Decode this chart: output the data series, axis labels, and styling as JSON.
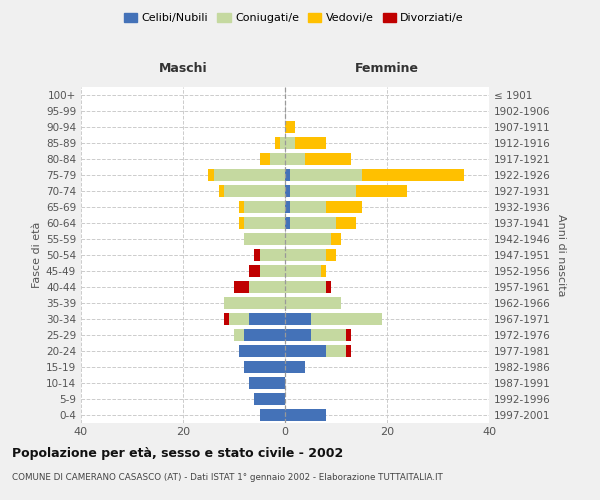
{
  "age_groups": [
    "0-4",
    "5-9",
    "10-14",
    "15-19",
    "20-24",
    "25-29",
    "30-34",
    "35-39",
    "40-44",
    "45-49",
    "50-54",
    "55-59",
    "60-64",
    "65-69",
    "70-74",
    "75-79",
    "80-84",
    "85-89",
    "90-94",
    "95-99",
    "100+"
  ],
  "birth_years": [
    "1997-2001",
    "1992-1996",
    "1987-1991",
    "1982-1986",
    "1977-1981",
    "1972-1976",
    "1967-1971",
    "1962-1966",
    "1957-1961",
    "1952-1956",
    "1947-1951",
    "1942-1946",
    "1937-1941",
    "1932-1936",
    "1927-1931",
    "1922-1926",
    "1917-1921",
    "1912-1916",
    "1907-1911",
    "1902-1906",
    "≤ 1901"
  ],
  "males_celibi": [
    5,
    6,
    7,
    8,
    9,
    8,
    7,
    0,
    0,
    0,
    0,
    0,
    0,
    0,
    0,
    0,
    0,
    0,
    0,
    0,
    0
  ],
  "males_coniugati": [
    0,
    0,
    0,
    0,
    0,
    2,
    4,
    12,
    7,
    5,
    5,
    8,
    8,
    8,
    12,
    14,
    3,
    1,
    0,
    0,
    0
  ],
  "males_vedovi": [
    0,
    0,
    0,
    0,
    0,
    0,
    0,
    0,
    0,
    0,
    0,
    0,
    1,
    1,
    1,
    1,
    2,
    1,
    0,
    0,
    0
  ],
  "males_divorziati": [
    0,
    0,
    0,
    0,
    0,
    0,
    1,
    0,
    3,
    2,
    1,
    0,
    0,
    0,
    0,
    0,
    0,
    0,
    0,
    0,
    0
  ],
  "females_nubili": [
    8,
    0,
    0,
    4,
    8,
    5,
    5,
    0,
    0,
    0,
    0,
    0,
    1,
    1,
    1,
    1,
    0,
    0,
    0,
    0,
    0
  ],
  "females_coniugate": [
    0,
    0,
    0,
    0,
    4,
    7,
    14,
    11,
    8,
    7,
    8,
    9,
    9,
    7,
    13,
    14,
    4,
    2,
    0,
    0,
    0
  ],
  "females_vedove": [
    0,
    0,
    0,
    0,
    0,
    0,
    0,
    0,
    0,
    1,
    2,
    2,
    4,
    7,
    10,
    20,
    9,
    6,
    2,
    0,
    0
  ],
  "females_divorziate": [
    0,
    0,
    0,
    0,
    1,
    1,
    0,
    0,
    1,
    0,
    0,
    0,
    0,
    0,
    0,
    0,
    0,
    0,
    0,
    0,
    0
  ],
  "color_celibi": "#4472b8",
  "color_coniugati": "#c5d9a0",
  "color_vedovi": "#ffc000",
  "color_divorziati": "#c00000",
  "xlim": 40,
  "title": "Popolazione per età, sesso e stato civile - 2002",
  "subtitle": "COMUNE DI CAMERANO CASASCO (AT) - Dati ISTAT 1° gennaio 2002 - Elaborazione TUTTAITALIA.IT",
  "ylabel_left": "Fasce di età",
  "ylabel_right": "Anni di nascita",
  "header_left": "Maschi",
  "header_right": "Femmine",
  "bg_color": "#f0f0f0",
  "plot_bg_color": "#ffffff"
}
